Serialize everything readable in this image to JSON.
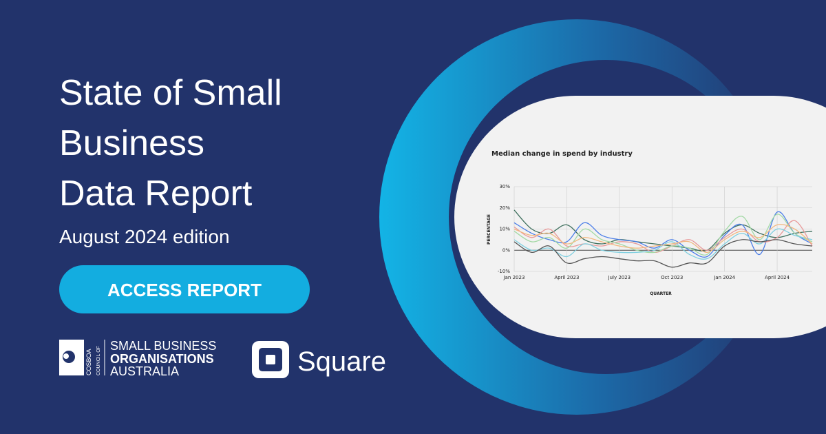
{
  "banner": {
    "title_lines": [
      "State of Small",
      "Business",
      "Data Report"
    ],
    "subtitle": "August 2024 edition",
    "button": "ACCESS REPORT",
    "cosboa": {
      "short": "COSBOA",
      "prefix": "COUNCIL OF",
      "lines": [
        "SMALL BUSINESS",
        "ORGANISATIONS",
        "AUSTRALIA"
      ]
    },
    "square": "Square"
  },
  "chart_data": {
    "type": "line",
    "title": "Median change in spend by industry",
    "y_label": "PERCENTAGE",
    "x_label": "QUARTER",
    "categories": [
      "Jan 2023",
      null,
      null,
      "April 2023",
      null,
      null,
      "July 2023",
      null,
      null,
      "Oct 2023",
      null,
      null,
      "Jan 2024",
      null,
      null,
      "April 2024",
      null,
      null
    ],
    "ylim": [
      -10,
      30
    ],
    "yticks": [
      {
        "value": -10,
        "label": "-10%"
      },
      {
        "value": 0,
        "label": "0%"
      },
      {
        "value": 10,
        "label": "10%"
      },
      {
        "value": 20,
        "label": "20%"
      },
      {
        "value": 30,
        "label": "30%"
      }
    ],
    "grid": true,
    "series": [
      {
        "color": "#3d6e5c",
        "values": [
          19,
          10,
          8,
          12,
          5,
          3,
          5,
          4,
          3,
          2,
          1,
          0,
          8,
          12,
          8,
          6,
          8,
          9
        ]
      },
      {
        "color": "#4a7de8",
        "values": [
          13,
          8,
          5,
          4,
          13,
          7,
          5,
          4,
          1,
          5,
          0,
          -3,
          7,
          12,
          -2,
          18,
          8,
          3
        ]
      },
      {
        "color": "#e89a9a",
        "values": [
          11,
          6,
          10,
          2,
          3,
          2,
          4,
          3,
          -1,
          2,
          5,
          0,
          6,
          10,
          4,
          6,
          14,
          2
        ]
      },
      {
        "color": "#a3d9a5",
        "values": [
          9,
          4,
          6,
          1,
          10,
          5,
          3,
          0,
          -1,
          2,
          1,
          -2,
          9,
          16,
          5,
          17,
          8,
          4
        ]
      },
      {
        "color": "#7fcfe0",
        "values": [
          5,
          0,
          1,
          -3,
          3,
          0,
          -1,
          -1,
          0,
          4,
          -2,
          -4,
          3,
          8,
          3,
          10,
          7,
          5
        ]
      },
      {
        "color": "#555555",
        "values": [
          4,
          -1,
          2,
          -6,
          -4,
          -3,
          -4,
          -5,
          -5,
          -8,
          -6,
          -6,
          2,
          5,
          4,
          5,
          3,
          2
        ]
      },
      {
        "color": "#f2b880",
        "values": [
          10,
          7,
          8,
          3,
          6,
          4,
          2,
          1,
          2,
          3,
          4,
          -1,
          5,
          9,
          6,
          12,
          10,
          3
        ]
      }
    ]
  }
}
